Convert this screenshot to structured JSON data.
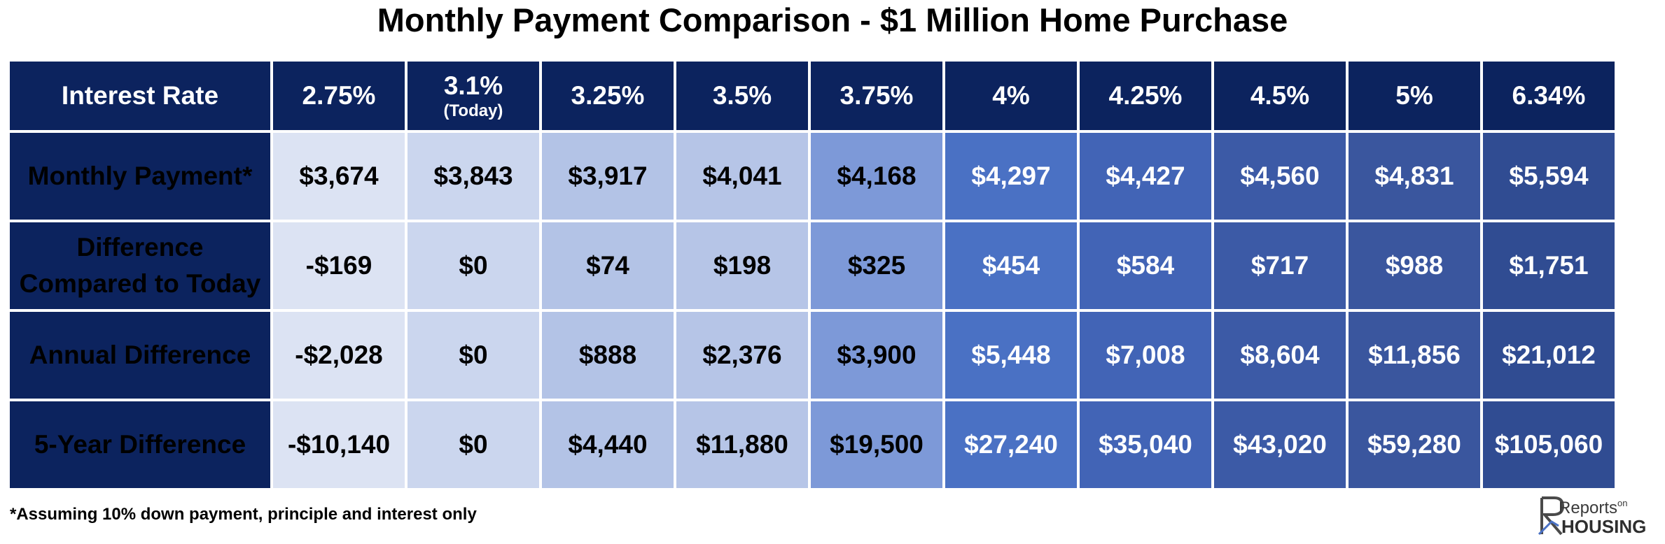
{
  "title": "Monthly Payment Comparison - $1 Million Home Purchase",
  "header": {
    "label": "Interest Rate",
    "rates": [
      {
        "rate": "2.75%",
        "note": ""
      },
      {
        "rate": "3.1%",
        "note": "(Today)"
      },
      {
        "rate": "3.25%",
        "note": ""
      },
      {
        "rate": "3.5%",
        "note": ""
      },
      {
        "rate": "3.75%",
        "note": ""
      },
      {
        "rate": "4%",
        "note": ""
      },
      {
        "rate": "4.25%",
        "note": ""
      },
      {
        "rate": "4.5%",
        "note": ""
      },
      {
        "rate": "5%",
        "note": ""
      },
      {
        "rate": "6.34%",
        "note": ""
      }
    ]
  },
  "rows": [
    {
      "label": "Monthly Payment*",
      "values": [
        "$3,674",
        "$3,843",
        "$3,917",
        "$4,041",
        "$4,168",
        "$4,297",
        "$4,427",
        "$4,560",
        "$4,831",
        "$5,594"
      ]
    },
    {
      "label": "Difference Compared to Today",
      "values": [
        "-$169",
        "$0",
        "$74",
        "$198",
        "$325",
        "$454",
        "$584",
        "$717",
        "$988",
        "$1,751"
      ]
    },
    {
      "label": "Annual Difference",
      "values": [
        "-$2,028",
        "$0",
        "$888",
        "$2,376",
        "$3,900",
        "$5,448",
        "$7,008",
        "$8,604",
        "$11,856",
        "$21,012"
      ]
    },
    {
      "label": "5-Year Difference",
      "values": [
        "-$10,140",
        "$0",
        "$4,440",
        "$11,880",
        "$19,500",
        "$27,240",
        "$35,040",
        "$43,020",
        "$59,280",
        "$105,060"
      ]
    }
  ],
  "column_colors": [
    "#dce3f3",
    "#cbd6ee",
    "#b3c3e6",
    "#b6c5e7",
    "#7d99d8",
    "#4a71c4",
    "#4264b6",
    "#3c5aa6",
    "#3a569e",
    "#304c92"
  ],
  "column_text_colors": [
    "#000000",
    "#000000",
    "#000000",
    "#000000",
    "#000000",
    "#ffffff",
    "#ffffff",
    "#ffffff",
    "#ffffff",
    "#ffffff"
  ],
  "header_color": "#0c235e",
  "footnote": "*Assuming 10% down payment, principle and interest only",
  "logo": {
    "line1": "Reports",
    "line1_small": "on",
    "line2": "HOUSING"
  }
}
